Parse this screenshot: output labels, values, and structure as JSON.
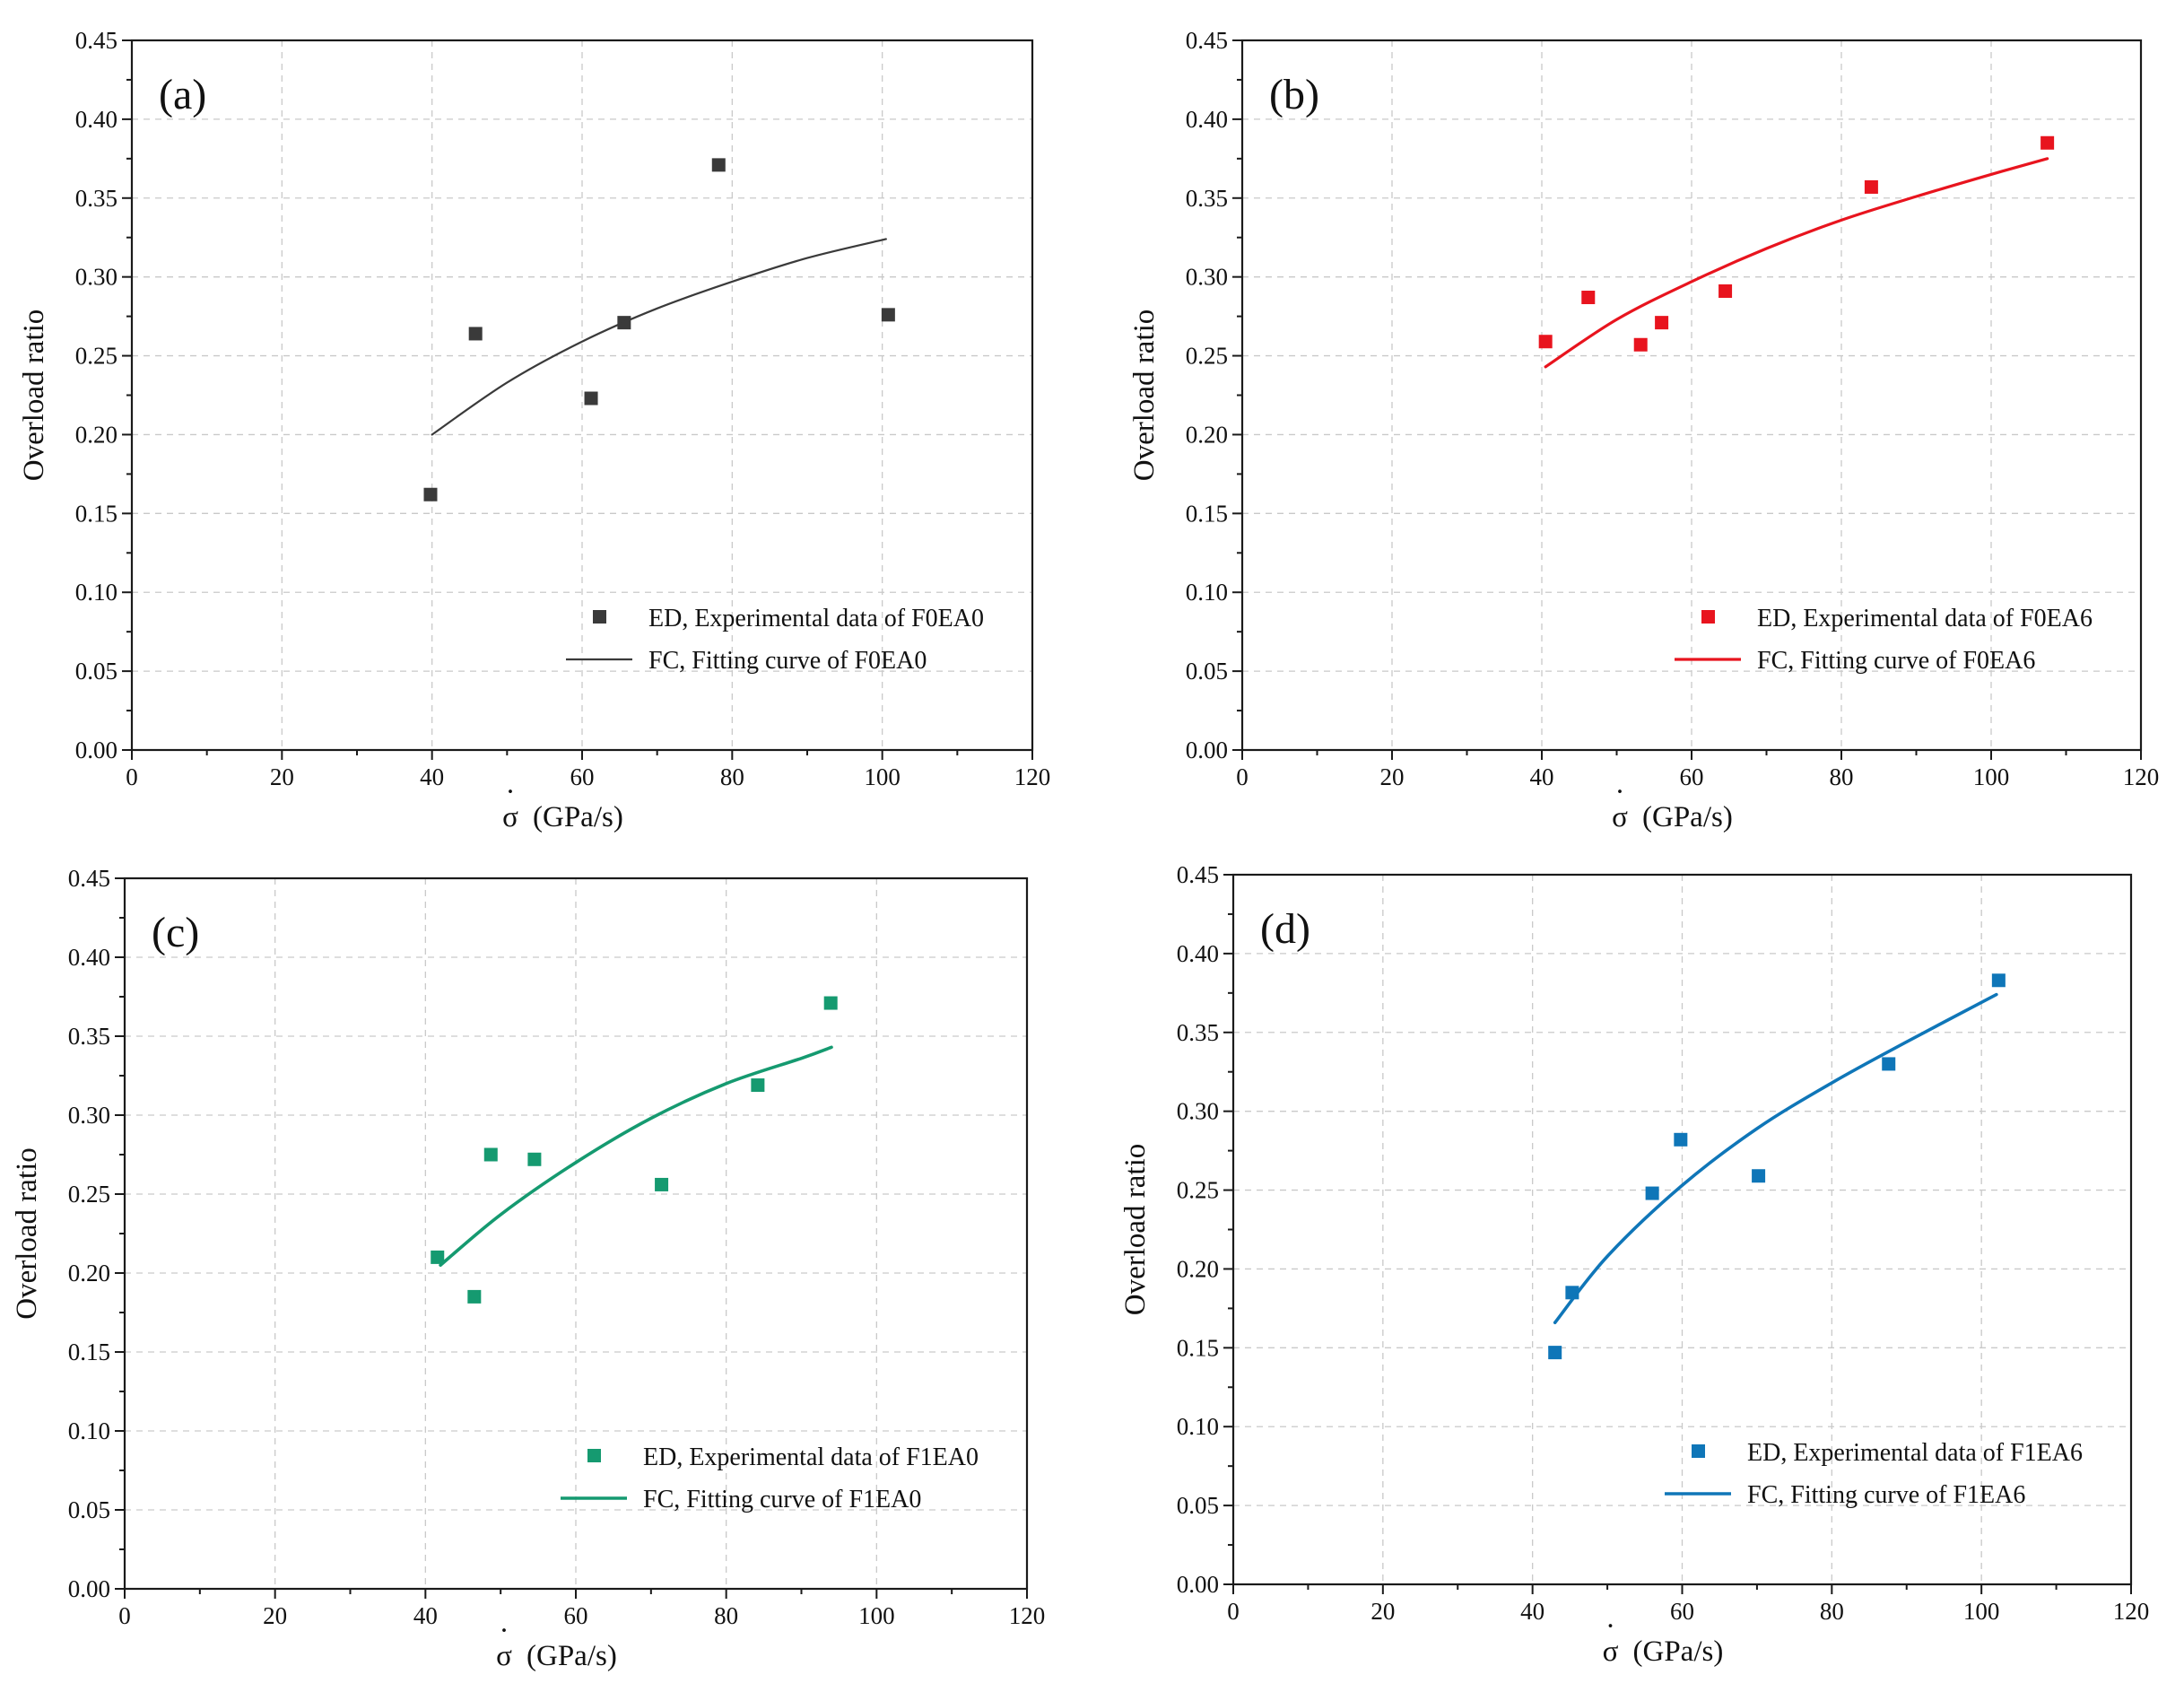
{
  "figure": {
    "chart_data": [
      {
        "type": "scatter",
        "panel_label": "(a)",
        "xlabel_symbol": "σ",
        "xlabel_dot": "·",
        "xlabel_unit": "(GPa/s)",
        "ylabel": "Overload ratio",
        "xlim": [
          0,
          120
        ],
        "ylim": [
          0,
          0.45
        ],
        "xticks": [
          "0",
          "20",
          "40",
          "60",
          "80",
          "100",
          "120"
        ],
        "yticks": [
          "0.00",
          "0.05",
          "0.10",
          "0.15",
          "0.20",
          "0.25",
          "0.30",
          "0.35",
          "0.40",
          "0.45"
        ],
        "grid": true,
        "color": "#3a3a3a",
        "fit_stroke_width": 2.2,
        "legend_position": "bottom-right",
        "series": [
          {
            "name": "ED, Experimental data of F0EA0",
            "kind": "points",
            "x": [
              39.8,
              45.8,
              61.2,
              65.6,
              78.2,
              100.8
            ],
            "y": [
              0.162,
              0.264,
              0.223,
              0.271,
              0.371,
              0.276
            ]
          },
          {
            "name": "FC, Fitting curve of F0EA0",
            "kind": "curve",
            "x": [
              40,
              50,
              60,
              70,
              80,
              90,
              100.5
            ],
            "y": [
              0.2,
              0.233,
              0.259,
              0.28,
              0.297,
              0.312,
              0.324
            ]
          }
        ]
      },
      {
        "type": "scatter",
        "panel_label": "(b)",
        "xlabel_symbol": "σ",
        "xlabel_dot": "·",
        "xlabel_unit": "(GPa/s)",
        "ylabel": "Overload ratio",
        "xlim": [
          0,
          120
        ],
        "ylim": [
          0,
          0.45
        ],
        "xticks": [
          "0",
          "20",
          "40",
          "60",
          "80",
          "100",
          "120"
        ],
        "yticks": [
          "0.00",
          "0.05",
          "0.10",
          "0.15",
          "0.20",
          "0.25",
          "0.30",
          "0.35",
          "0.40",
          "0.45"
        ],
        "grid": true,
        "color": "#e8141e",
        "fit_stroke_width": 3.2,
        "legend_position": "bottom-right",
        "series": [
          {
            "name": "ED, Experimental data of F0EA6",
            "kind": "points",
            "x": [
              40.5,
              46.2,
              53.2,
              56.0,
              64.5,
              84.0,
              107.5
            ],
            "y": [
              0.259,
              0.287,
              0.257,
              0.271,
              0.291,
              0.357,
              0.385
            ]
          },
          {
            "name": "FC, Fitting curve of F0EA6",
            "kind": "curve",
            "x": [
              40.5,
              50,
              60,
              70,
              80,
              90,
              100,
              107.5
            ],
            "y": [
              0.243,
              0.273,
              0.297,
              0.318,
              0.336,
              0.351,
              0.365,
              0.375
            ]
          }
        ]
      },
      {
        "type": "scatter",
        "panel_label": "(c)",
        "xlabel_symbol": "σ",
        "xlabel_dot": "·",
        "xlabel_unit": "(GPa/s)",
        "ylabel": "Overload ratio",
        "xlim": [
          0,
          120
        ],
        "ylim": [
          0,
          0.45
        ],
        "xticks": [
          "0",
          "20",
          "40",
          "60",
          "80",
          "100",
          "120"
        ],
        "yticks": [
          "0.00",
          "0.05",
          "0.10",
          "0.15",
          "0.20",
          "0.25",
          "0.30",
          "0.35",
          "0.40",
          "0.45"
        ],
        "grid": true,
        "color": "#159a70",
        "fit_stroke_width": 3.6,
        "legend_position": "bottom-right",
        "series": [
          {
            "name": "ED, Experimental data of F1EA0",
            "kind": "points",
            "x": [
              41.6,
              46.5,
              48.7,
              54.5,
              71.4,
              84.2,
              93.9
            ],
            "y": [
              0.21,
              0.185,
              0.275,
              0.272,
              0.256,
              0.319,
              0.371
            ]
          },
          {
            "name": "FC, Fitting curve of F1EA0",
            "kind": "curve",
            "x": [
              42,
              50,
              60,
              70,
              80,
              90,
              94
            ],
            "y": [
              0.205,
              0.237,
              0.27,
              0.298,
              0.32,
              0.336,
              0.343
            ]
          }
        ]
      },
      {
        "type": "scatter",
        "panel_label": "(d)",
        "xlabel_symbol": "σ",
        "xlabel_dot": "·",
        "xlabel_unit": "(GPa/s)",
        "ylabel": "Overload ratio",
        "xlim": [
          0,
          120
        ],
        "ylim": [
          0,
          0.45
        ],
        "xticks": [
          "0",
          "20",
          "40",
          "60",
          "80",
          "100",
          "120"
        ],
        "yticks": [
          "0.00",
          "0.05",
          "0.10",
          "0.15",
          "0.20",
          "0.25",
          "0.30",
          "0.35",
          "0.40",
          "0.45"
        ],
        "grid": true,
        "color": "#0f76b8",
        "fit_stroke_width": 3.6,
        "legend_position": "bottom-right",
        "series": [
          {
            "name": "ED, Experimental data of F1EA6",
            "kind": "points",
            "x": [
              43.0,
              45.3,
              56.0,
              59.8,
              70.2,
              87.6,
              102.3
            ],
            "y": [
              0.147,
              0.185,
              0.248,
              0.282,
              0.259,
              0.33,
              0.383
            ]
          },
          {
            "name": "FC, Fitting curve of F1EA6",
            "kind": "curve",
            "x": [
              43,
              50,
              60,
              70,
              80,
              90,
              102
            ],
            "y": [
              0.166,
              0.208,
              0.253,
              0.289,
              0.318,
              0.344,
              0.374
            ]
          }
        ]
      }
    ]
  }
}
